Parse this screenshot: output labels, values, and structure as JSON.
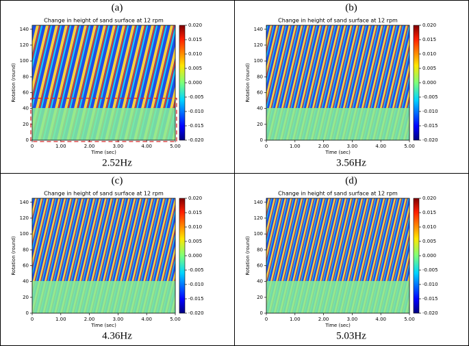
{
  "chart_data": [
    {
      "type": "heatmap",
      "panel_label": "(a)",
      "title": "Change in height of sand surface at 12 rpm",
      "xlabel": "Time (sec)",
      "ylabel": "Rotation (round)",
      "frequency": "2.52Hz",
      "xlim": [
        0,
        5
      ],
      "xticks": [
        0,
        {
          "value": 1,
          "label": "1.00"
        },
        {
          "value": 2,
          "label": "2.00"
        },
        {
          "value": 3,
          "label": "3.00"
        },
        {
          "value": 4,
          "label": "4.00"
        },
        {
          "value": 5,
          "label": "5.00"
        }
      ],
      "ylim": [
        0,
        145
      ],
      "yticks": [
        0,
        20,
        40,
        60,
        80,
        100,
        120,
        140
      ],
      "clim": [
        -0.02,
        0.02
      ],
      "cticks": [
        {
          "value": -0.02,
          "label": "-0.020"
        },
        {
          "value": -0.015,
          "label": "-0.015"
        },
        {
          "value": -0.01,
          "label": "-0.010"
        },
        {
          "value": -0.005,
          "label": "-0.005"
        },
        {
          "value": 0,
          "label": "0.000"
        },
        {
          "value": 0.005,
          "label": "0.005"
        },
        {
          "value": 0.01,
          "label": "0.010"
        },
        {
          "value": 0.015,
          "label": "0.015"
        },
        {
          "value": 0.02,
          "label": "0.020"
        }
      ],
      "box_xlim": [
        0,
        5
      ],
      "box_ylim": [
        0,
        53
      ],
      "box_color": "#d62728"
    },
    {
      "type": "heatmap",
      "panel_label": "(b)",
      "title": "Change in height of sand surface at 12 rpm",
      "xlabel": "Time (sec)",
      "ylabel": "Rotation (round)",
      "frequency": "3.56Hz",
      "xlim": [
        0,
        5
      ],
      "xticks": [
        0,
        {
          "value": 1,
          "label": "1.00"
        },
        {
          "value": 2,
          "label": "2.00"
        },
        {
          "value": 3,
          "label": "3.00"
        },
        {
          "value": 4,
          "label": "4.00"
        },
        {
          "value": 5,
          "label": "5.00"
        }
      ],
      "ylim": [
        0,
        145
      ],
      "yticks": [
        0,
        20,
        40,
        60,
        80,
        100,
        120,
        140
      ],
      "clim": [
        -0.02,
        0.02
      ],
      "cticks": [
        {
          "value": -0.02,
          "label": "-0.020"
        },
        {
          "value": -0.015,
          "label": "-0.015"
        },
        {
          "value": -0.01,
          "label": "-0.010"
        },
        {
          "value": -0.005,
          "label": "-0.005"
        },
        {
          "value": 0,
          "label": "0.000"
        },
        {
          "value": 0.005,
          "label": "0.005"
        },
        {
          "value": 0.01,
          "label": "0.010"
        },
        {
          "value": 0.015,
          "label": "0.015"
        },
        {
          "value": 0.02,
          "label": "0.020"
        }
      ]
    },
    {
      "type": "heatmap",
      "panel_label": "(c)",
      "title": "Change in height of sand surface at 12 rpm",
      "xlabel": "Time (sec)",
      "ylabel": "Rotation (round)",
      "frequency": "4.36Hz",
      "xlim": [
        0,
        5
      ],
      "xticks": [
        0,
        {
          "value": 1,
          "label": "1.00"
        },
        {
          "value": 2,
          "label": "2.00"
        },
        {
          "value": 3,
          "label": "3.00"
        },
        {
          "value": 4,
          "label": "4.00"
        },
        {
          "value": 5,
          "label": "5.00"
        }
      ],
      "ylim": [
        0,
        145
      ],
      "yticks": [
        0,
        20,
        40,
        60,
        80,
        100,
        120,
        140
      ],
      "clim": [
        -0.02,
        0.02
      ],
      "cticks": [
        {
          "value": -0.02,
          "label": "-0.020"
        },
        {
          "value": -0.015,
          "label": "-0.015"
        },
        {
          "value": -0.01,
          "label": "-0.010"
        },
        {
          "value": -0.005,
          "label": "-0.005"
        },
        {
          "value": 0,
          "label": "0.000"
        },
        {
          "value": 0.005,
          "label": "0.005"
        },
        {
          "value": 0.01,
          "label": "0.010"
        },
        {
          "value": 0.015,
          "label": "0.015"
        },
        {
          "value": 0.02,
          "label": "0.020"
        }
      ]
    },
    {
      "type": "heatmap",
      "panel_label": "(d)",
      "title": "Change in height of sand surface at 12 rpm",
      "xlabel": "Time (sec)",
      "ylabel": "Rotation (round)",
      "frequency": "5.03Hz",
      "xlim": [
        0,
        5
      ],
      "xticks": [
        0,
        {
          "value": 1,
          "label": "1.00"
        },
        {
          "value": 2,
          "label": "2.00"
        },
        {
          "value": 3,
          "label": "3.00"
        },
        {
          "value": 4,
          "label": "4.00"
        },
        {
          "value": 5,
          "label": "5.00"
        }
      ],
      "ylim": [
        0,
        145
      ],
      "yticks": [
        0,
        20,
        40,
        60,
        80,
        100,
        120,
        140
      ],
      "clim": [
        -0.02,
        0.02
      ],
      "cticks": [
        {
          "value": -0.02,
          "label": "-0.020"
        },
        {
          "value": -0.015,
          "label": "-0.015"
        },
        {
          "value": -0.01,
          "label": "-0.010"
        },
        {
          "value": -0.005,
          "label": "-0.005"
        },
        {
          "value": 0,
          "label": "0.000"
        },
        {
          "value": 0.005,
          "label": "0.005"
        },
        {
          "value": 0.01,
          "label": "0.010"
        },
        {
          "value": 0.015,
          "label": "0.015"
        },
        {
          "value": 0.02,
          "label": "0.020"
        }
      ]
    }
  ]
}
